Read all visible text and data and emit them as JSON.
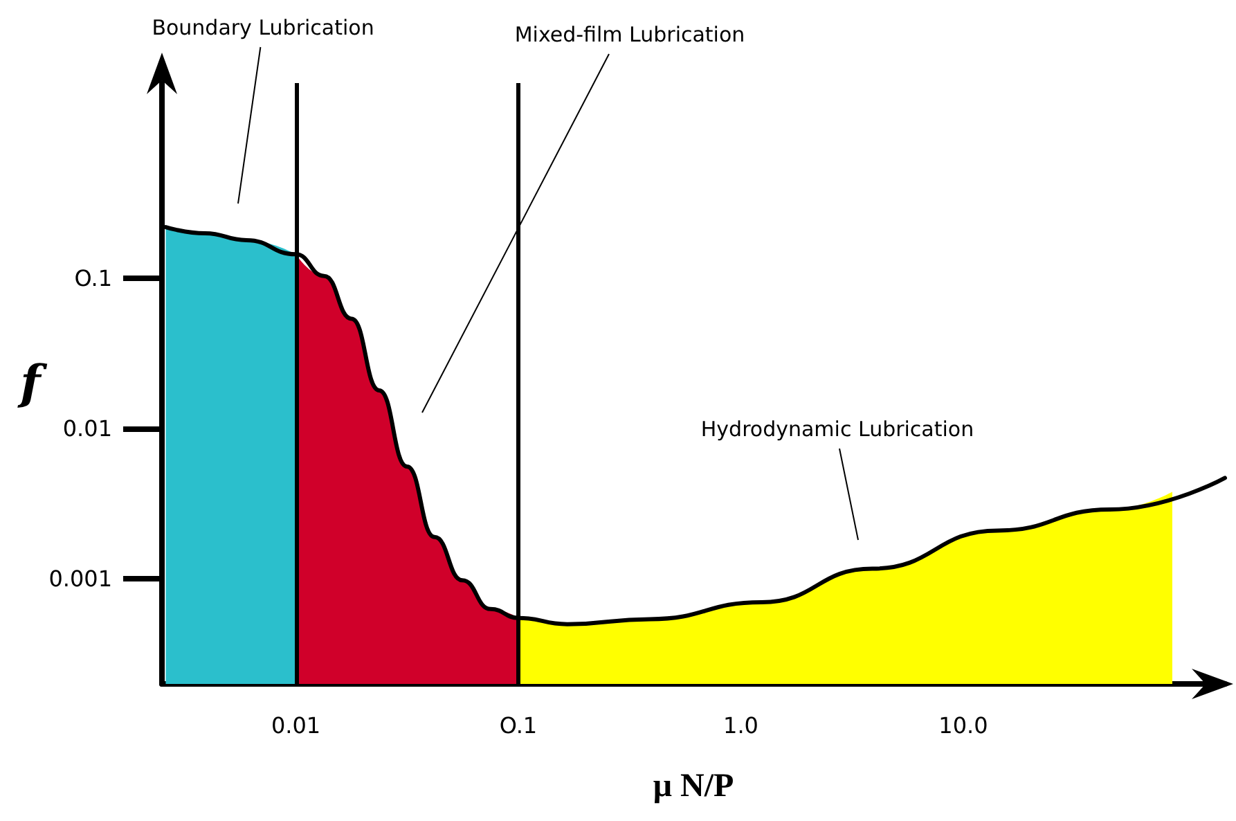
{
  "chart_data": {
    "type": "area",
    "xlabel": "μ N/P",
    "ylabel": "f",
    "log": "xy",
    "grid": false,
    "marker": "none",
    "xlim": [
      0.0025,
      150
    ],
    "ylim": [
      0.0002,
      2
    ],
    "xticks": [
      {
        "value": 0.01,
        "label": "0.01"
      },
      {
        "value": 0.1,
        "label": "O.1"
      },
      {
        "value": 1,
        "label": "1.0"
      },
      {
        "value": 10,
        "label": "10.0"
      }
    ],
    "yticks": [
      {
        "value": 0.001,
        "label": "0.001"
      },
      {
        "value": 0.01,
        "label": "0.01"
      },
      {
        "value": 0.1,
        "label": "O.1"
      }
    ],
    "series": [
      {
        "type": "area",
        "color": "#2bbfcc",
        "x": [
          0.0026,
          0.0039,
          0.006,
          0.01
        ],
        "values": [
          0.22,
          0.2,
          0.18,
          0.145
        ]
      },
      {
        "type": "area",
        "color": "#d0002a",
        "x": [
          0.01,
          0.0134,
          0.0178,
          0.0237,
          0.0316,
          0.042,
          0.056,
          0.075,
          0.1
        ],
        "values": [
          0.145,
          0.104,
          0.054,
          0.018,
          0.0056,
          0.0019,
          0.00098,
          0.00063,
          0.00055
        ]
      },
      {
        "type": "area",
        "color": "#ffff00",
        "x": [
          0.1,
          0.166,
          0.39,
          1.24,
          3.9,
          14.3,
          45.6,
          87
        ],
        "values": [
          0.00055,
          0.0005,
          0.00054,
          0.0007,
          0.00117,
          0.0021,
          0.0029,
          0.0038
        ]
      },
      {
        "type": "line",
        "color": "#000000",
        "x": [
          0.0026,
          0.0039,
          0.006,
          0.01,
          0.0134,
          0.0178,
          0.0237,
          0.0316,
          0.042,
          0.056,
          0.075,
          0.1,
          0.166,
          0.39,
          1.24,
          3.9,
          14.3,
          45.6,
          150
        ],
        "values": [
          0.22,
          0.2,
          0.18,
          0.145,
          0.104,
          0.054,
          0.018,
          0.0056,
          0.0019,
          0.00098,
          0.00063,
          0.00055,
          0.0005,
          0.00054,
          0.0007,
          0.00117,
          0.0021,
          0.0029,
          0.0047
        ]
      }
    ],
    "ref_lines": [
      {
        "axis": "x",
        "value": 0.01,
        "color": "#000000"
      },
      {
        "axis": "x",
        "value": 0.1,
        "color": "#000000"
      }
    ],
    "annotations": [
      "Boundary Lubrication",
      "Mixed-film Lubrication",
      "Hydrodynamic Lubrication"
    ]
  }
}
